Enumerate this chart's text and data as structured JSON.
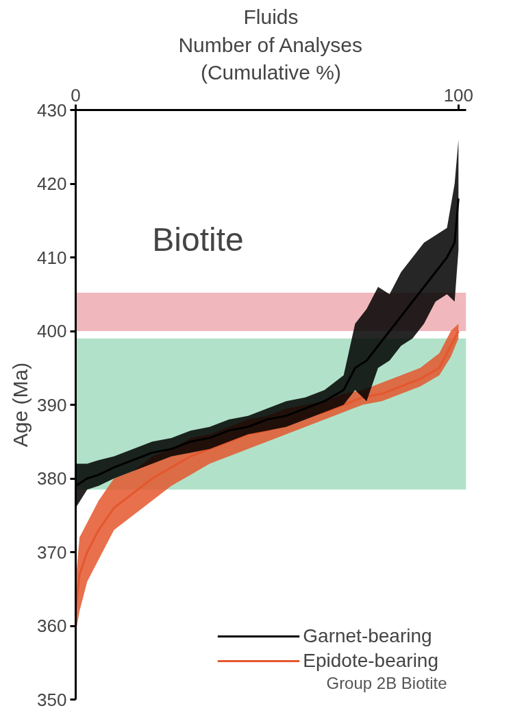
{
  "chart_data": {
    "type": "line",
    "title": "Fluids",
    "xlabel": "Number of Analyses\n(Cumulative %)",
    "ylabel": "Age (Ma)",
    "xlim": [
      0,
      102
    ],
    "xticks": [
      0,
      100
    ],
    "ylim": [
      350,
      430
    ],
    "yticks": [
      350,
      360,
      370,
      380,
      390,
      400,
      410,
      420,
      430
    ],
    "grid": false,
    "legend": "bottom right",
    "line_style": "solid",
    "marker": "none",
    "annotations": [
      "Biotite",
      "Group 2B Biotite"
    ],
    "bands": [
      {
        "axis": "y",
        "from": 400,
        "to": 405.2,
        "color": "#f0b8bd"
      },
      {
        "axis": "y",
        "from": 378.5,
        "to": 399,
        "color": "#b1e2c9"
      }
    ],
    "series": [
      {
        "name": "Garnet-bearing",
        "color": "#000000",
        "x": [
          0,
          3,
          6,
          10,
          15,
          20,
          25,
          30,
          35,
          40,
          45,
          50,
          55,
          60,
          65,
          70,
          73,
          76,
          79,
          82,
          85,
          88,
          91,
          94,
          97,
          99,
          100
        ],
        "values": [
          379,
          380,
          380.5,
          381.5,
          382.5,
          383.5,
          384,
          385,
          385.5,
          386.5,
          387,
          388,
          388.5,
          389.5,
          390.5,
          392,
          395,
          396,
          398,
          400,
          402,
          404,
          406,
          408,
          410,
          412,
          418
        ],
        "lower": [
          376,
          378.5,
          379,
          380,
          381,
          382,
          383,
          383.5,
          384,
          385,
          386,
          386.5,
          387,
          388,
          389,
          390,
          392,
          390.5,
          395,
          396,
          398,
          399,
          401,
          404,
          405,
          404,
          411
        ],
        "upper": [
          382,
          382,
          382.5,
          383,
          384,
          385,
          385.5,
          386.5,
          387,
          388,
          388.5,
          389.5,
          390.5,
          391,
          392,
          394,
          401,
          403,
          406,
          405,
          408,
          410,
          412,
          413,
          414,
          420,
          426
        ]
      },
      {
        "name": "Epidote-bearing",
        "color": "#e4572e",
        "x": [
          0,
          1,
          3,
          6,
          10,
          15,
          20,
          25,
          30,
          35,
          40,
          45,
          50,
          55,
          60,
          65,
          70,
          75,
          80,
          85,
          90,
          95,
          98,
          100
        ],
        "values": [
          362,
          367,
          370,
          373,
          376,
          378,
          380,
          381.5,
          383,
          384,
          385,
          386,
          386.5,
          387.5,
          388.5,
          389,
          390,
          391,
          391.5,
          392.5,
          393.5,
          395,
          398,
          400
        ],
        "lower": [
          359,
          362,
          366,
          369,
          373,
          375,
          377,
          379,
          380.5,
          382,
          383,
          384,
          385,
          386,
          387,
          388,
          389,
          390,
          390.5,
          391.5,
          392.5,
          394,
          396.5,
          399
        ],
        "upper": [
          366,
          372,
          374,
          377,
          380,
          381,
          383,
          384,
          385.5,
          386,
          387,
          388,
          388.5,
          389.5,
          390,
          390.5,
          391.5,
          392,
          393,
          394,
          395,
          397,
          400,
          401
        ]
      }
    ]
  }
}
